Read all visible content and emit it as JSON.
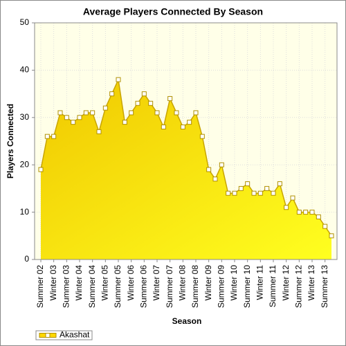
{
  "chart_data": {
    "type": "area",
    "title": "Average Players Connected By Season",
    "x_label": "Season",
    "y_label": "Players Connected",
    "categories": [
      "Summer 02",
      null,
      "Winter 03",
      null,
      "Summer 03",
      null,
      "Winter 04",
      null,
      "Summer 04",
      null,
      "Winter 05",
      null,
      "Summer 05",
      null,
      "Winter 06",
      null,
      "Summer 06",
      null,
      "Winter 07",
      null,
      "Summer 07",
      null,
      "Winter 08",
      null,
      "Summer 08",
      null,
      "Winter 09",
      null,
      "Summer 09",
      null,
      "Winter 10",
      null,
      "Summer 10",
      null,
      "Winter 11",
      null,
      "Summer 11",
      null,
      "Winter 12",
      null,
      "Summer 12",
      null,
      "Winter 13",
      null,
      "Summer 13",
      null
    ],
    "series": [
      {
        "name": "Akashat",
        "color": "#ffd800",
        "values": [
          19,
          26,
          26,
          31,
          30,
          29,
          30,
          31,
          31,
          27,
          32,
          35,
          38,
          29,
          31,
          33,
          35,
          33,
          31,
          28,
          34,
          31,
          28,
          29,
          31,
          26,
          19,
          17,
          20,
          14,
          14,
          15,
          16,
          14,
          14,
          15,
          14,
          16,
          11,
          13,
          10,
          10,
          10,
          9,
          7,
          5
        ]
      }
    ],
    "ylim": [
      0,
      50
    ],
    "yticks": [
      0,
      10,
      20,
      30,
      40,
      50
    ],
    "grid": true,
    "legend": "bottom-left"
  }
}
